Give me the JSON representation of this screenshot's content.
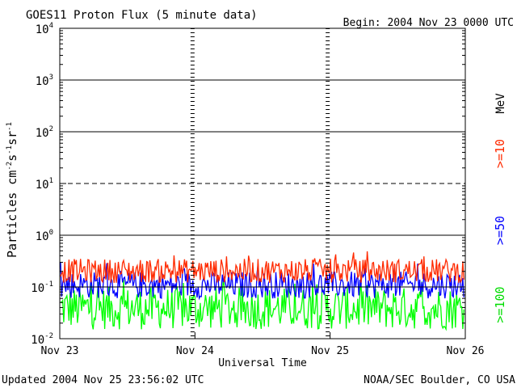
{
  "chart_data": {
    "type": "line",
    "title": "GOES11 Proton Flux (5 minute data)",
    "begin_label": "Begin: 2004 Nov 23 0000 UTC",
    "ylabel_parts": [
      "Particles cm",
      "-2",
      "s",
      "-1",
      "sr",
      "-1"
    ],
    "xlabel": "Universal Time",
    "x_categories": [
      "Nov 23",
      "Nov 24",
      "Nov 25",
      "Nov 26"
    ],
    "y_scale": "log",
    "ylim": [
      0.01,
      10000
    ],
    "y_ticks": [
      {
        "base": "10",
        "exp": "4",
        "value": 10000
      },
      {
        "base": "10",
        "exp": "3",
        "value": 1000
      },
      {
        "base": "10",
        "exp": "2",
        "value": 100
      },
      {
        "base": "10",
        "exp": "1",
        "value": 10
      },
      {
        "base": "10",
        "exp": "0",
        "value": 1
      },
      {
        "base": "10",
        "exp": "-1",
        "value": 0.1
      },
      {
        "base": "10",
        "exp": "-2",
        "value": 0.01
      }
    ],
    "reference_lines": [
      {
        "value": 1000,
        "style": "solid"
      },
      {
        "value": 100,
        "style": "solid"
      },
      {
        "value": 10,
        "style": "dashed"
      },
      {
        "value": 1,
        "style": "solid"
      },
      {
        "value": 0.1,
        "style": "solid"
      }
    ],
    "energy_unit": "MeV",
    "series": [
      {
        "name": ">=10",
        "color": "#ff2a00",
        "typical_range": [
          0.12,
          0.35
        ],
        "peak": 0.5
      },
      {
        "name": ">=50",
        "color": "#0000ff",
        "typical_range": [
          0.06,
          0.2
        ],
        "peak": 0.3
      },
      {
        "name": ">=100",
        "color": "#00ff00",
        "typical_range": [
          0.015,
          0.1
        ],
        "peak": 0.15
      }
    ]
  },
  "footer": {
    "updated": "Updated 2004 Nov 25 23:56:02 UTC",
    "source": "NOAA/SEC Boulder, CO USA"
  }
}
